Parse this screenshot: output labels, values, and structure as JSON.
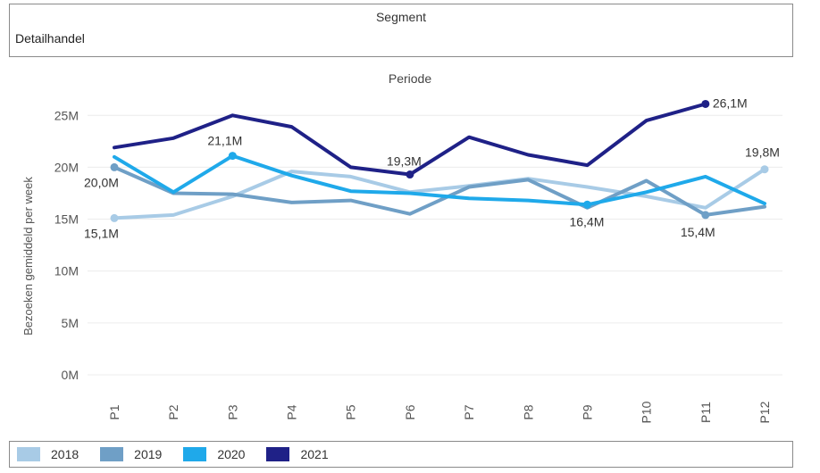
{
  "slicer": {
    "title": "Segment",
    "value": "Detailhandel"
  },
  "chart_data": {
    "type": "line",
    "title": "Periode",
    "xlabel": "",
    "ylabel": "Bezoeken gemiddeld per week",
    "categories": [
      "P1",
      "P2",
      "P3",
      "P4",
      "P5",
      "P6",
      "P7",
      "P8",
      "P9",
      "P10",
      "P11",
      "P12"
    ],
    "yticks": [
      "0M",
      "5M",
      "10M",
      "15M",
      "20M",
      "25M"
    ],
    "ylim": [
      0,
      27
    ],
    "grid": true,
    "legend_position": "bottom",
    "series": [
      {
        "name": "2018",
        "color": "#a8cbe6",
        "values": [
          15.1,
          15.4,
          17.2,
          19.6,
          19.1,
          17.6,
          18.2,
          18.9,
          18.1,
          17.2,
          16.1,
          19.8
        ]
      },
      {
        "name": "2019",
        "color": "#6f9fc6",
        "values": [
          20.0,
          17.5,
          17.4,
          16.6,
          16.8,
          15.5,
          18.1,
          18.8,
          16.1,
          18.7,
          15.4,
          16.2
        ]
      },
      {
        "name": "2020",
        "color": "#1fa9ea",
        "values": [
          21.0,
          17.6,
          21.1,
          19.2,
          17.7,
          17.5,
          17.0,
          16.8,
          16.4,
          17.6,
          19.1,
          16.5
        ]
      },
      {
        "name": "2021",
        "color": "#1f2187",
        "values": [
          21.9,
          22.8,
          25.0,
          23.9,
          20.0,
          19.3,
          22.9,
          21.2,
          20.2,
          24.5,
          26.1,
          null
        ]
      }
    ],
    "annotations": [
      {
        "series": 1,
        "index": 0,
        "label": "20,0M"
      },
      {
        "series": 0,
        "index": 0,
        "label": "15,1M"
      },
      {
        "series": 2,
        "index": 2,
        "label": "21,1M"
      },
      {
        "series": 3,
        "index": 5,
        "label": "19,3M"
      },
      {
        "series": 2,
        "index": 8,
        "label": "16,4M"
      },
      {
        "series": 3,
        "index": 10,
        "label": "26,1M"
      },
      {
        "series": 1,
        "index": 10,
        "label": "15,4M"
      },
      {
        "series": 0,
        "index": 11,
        "label": "19,8M"
      }
    ]
  },
  "legend": [
    {
      "label": "2018",
      "color": "#a8cbe6"
    },
    {
      "label": "2019",
      "color": "#6f9fc6"
    },
    {
      "label": "2020",
      "color": "#1fa9ea"
    },
    {
      "label": "2021",
      "color": "#1f2187"
    }
  ]
}
